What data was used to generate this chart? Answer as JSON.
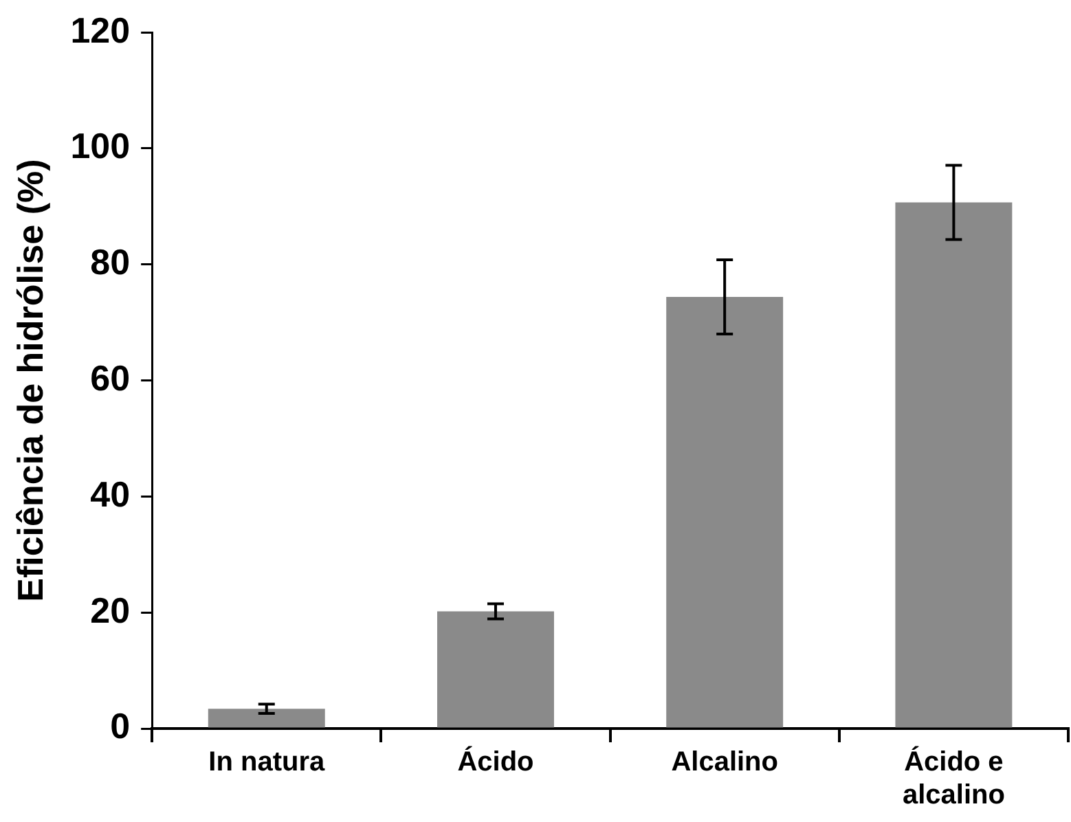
{
  "chart_data": {
    "type": "bar",
    "ylabel": "Eficiência de hidrólise (%)",
    "categories": [
      "In natura",
      "Ácido",
      "Alcalino",
      "Ácido e alcalino"
    ],
    "values": [
      3.4,
      20.2,
      74.4,
      90.7
    ],
    "errors": [
      0.8,
      1.3,
      6.4,
      6.4
    ],
    "color": "#8a8a8a",
    "ylim": [
      0,
      120
    ],
    "yticks": [
      0,
      20,
      40,
      60,
      80,
      100,
      120
    ],
    "grid": false,
    "legend": false
  }
}
